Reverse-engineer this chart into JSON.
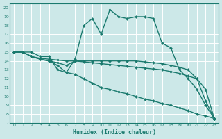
{
  "xlabel": "Humidex (Indice chaleur)",
  "xlim": [
    -0.5,
    23.5
  ],
  "ylim": [
    7,
    20.5
  ],
  "yticks": [
    7,
    8,
    9,
    10,
    11,
    12,
    13,
    14,
    15,
    16,
    17,
    18,
    19,
    20
  ],
  "xticks": [
    0,
    1,
    2,
    3,
    4,
    5,
    6,
    7,
    8,
    9,
    10,
    11,
    12,
    13,
    14,
    15,
    16,
    17,
    18,
    19,
    20,
    21,
    22,
    23
  ],
  "bg_color": "#cce8e8",
  "grid_color": "#ffffff",
  "line_color": "#1a7a6e",
  "line_width": 1.0,
  "marker": "D",
  "marker_size": 2.0,
  "lines": [
    {
      "x": [
        0,
        1,
        2,
        3,
        4,
        5,
        6,
        7,
        8,
        9,
        10,
        11,
        12,
        13,
        14,
        15,
        16,
        17,
        18,
        19,
        20,
        21,
        22,
        23
      ],
      "y": [
        15,
        15,
        15,
        14.5,
        14.5,
        13.0,
        12.7,
        14.2,
        18.0,
        18.8,
        17.0,
        19.8,
        19.0,
        18.8,
        19.0,
        19.0,
        18.8,
        16.0,
        15.5,
        13.0,
        12.0,
        10.8,
        9.0,
        7.5
      ]
    },
    {
      "x": [
        0,
        1,
        2,
        3,
        4,
        5,
        6,
        7,
        8,
        9,
        10,
        11,
        12,
        13,
        14,
        15,
        16,
        17,
        18,
        19,
        20,
        21,
        22,
        23
      ],
      "y": [
        15,
        15,
        14.5,
        14.3,
        14.2,
        14.1,
        14.0,
        14.0,
        14.0,
        14.0,
        14.0,
        14.0,
        14.0,
        14.0,
        14.0,
        13.9,
        13.8,
        13.7,
        13.5,
        13.3,
        13.0,
        12.0,
        10.8,
        7.5
      ]
    },
    {
      "x": [
        0,
        1,
        2,
        3,
        4,
        5,
        6,
        7,
        8,
        9,
        10,
        11,
        12,
        13,
        14,
        15,
        16,
        17,
        18,
        19,
        20,
        21,
        22,
        23
      ],
      "y": [
        15,
        15,
        14.5,
        14.2,
        14.0,
        13.8,
        13.5,
        14.0,
        13.9,
        13.8,
        13.7,
        13.6,
        13.5,
        13.4,
        13.3,
        13.2,
        13.1,
        13.0,
        12.8,
        12.6,
        12.3,
        12.0,
        9.5,
        7.5
      ]
    },
    {
      "x": [
        0,
        1,
        2,
        3,
        4,
        5,
        6,
        7,
        8,
        9,
        10,
        11,
        12,
        13,
        14,
        15,
        16,
        17,
        18,
        19,
        20,
        21,
        22,
        23
      ],
      "y": [
        15,
        15,
        14.5,
        14.2,
        14.0,
        13.5,
        12.7,
        12.5,
        12.0,
        11.5,
        11.0,
        10.8,
        10.5,
        10.3,
        10.0,
        9.7,
        9.5,
        9.2,
        9.0,
        8.7,
        8.4,
        8.0,
        7.8,
        7.5
      ]
    }
  ]
}
